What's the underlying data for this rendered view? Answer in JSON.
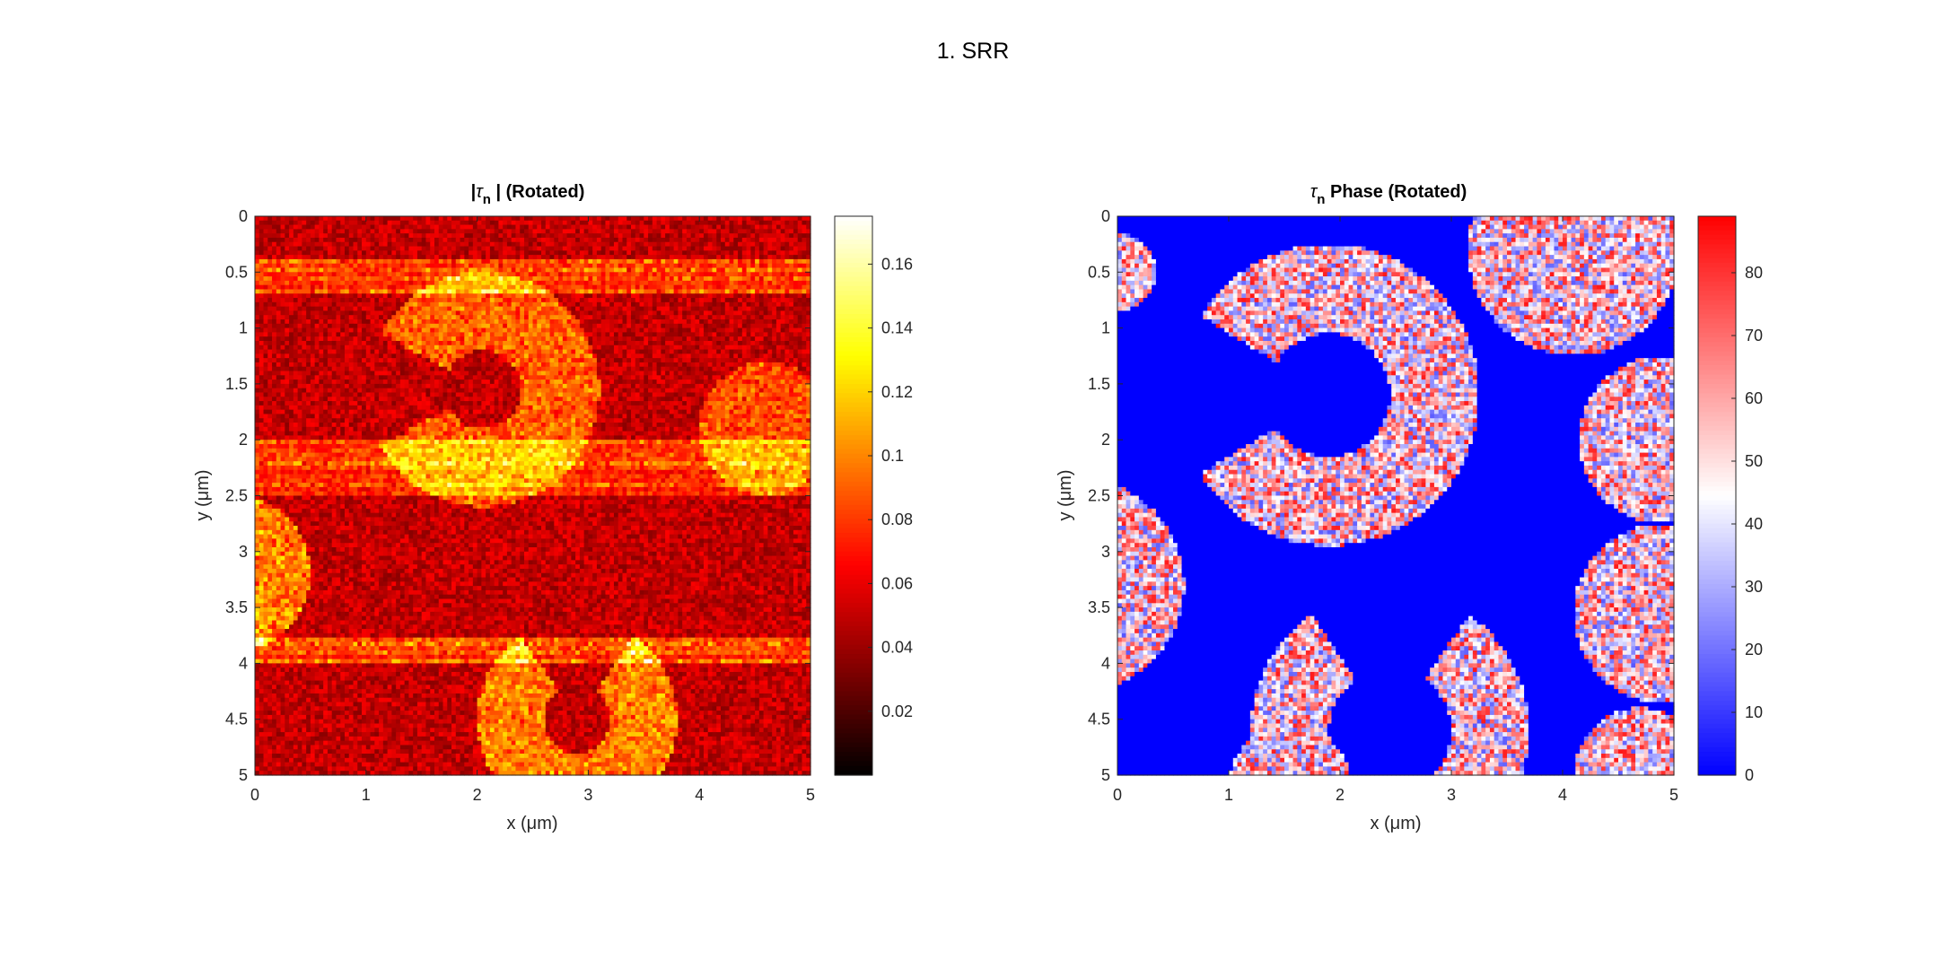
{
  "figure": {
    "title": "1. SRR"
  },
  "chart_data": [
    {
      "type": "heatmap",
      "title": "|τn | (Rotated)",
      "title_parts": {
        "pre": "|",
        "symbol": "τ",
        "sub": "n",
        "post": " | (Rotated)"
      },
      "xlabel": "x (μm)",
      "ylabel": "y (μm)",
      "xlim": [
        0,
        5
      ],
      "ylim": [
        0,
        5
      ],
      "x_ticks": [
        "0",
        "1",
        "2",
        "3",
        "4",
        "5"
      ],
      "y_ticks": [
        "0",
        "0.5",
        "1",
        "1.5",
        "2",
        "2.5",
        "3",
        "3.5",
        "4",
        "4.5",
        "5"
      ],
      "y_direction": "reversed",
      "colormap": "hot",
      "colorbar": {
        "min": 0,
        "max": 0.175,
        "ticks": [
          "0.02",
          "0.04",
          "0.06",
          "0.08",
          "0.1",
          "0.12",
          "0.14",
          "0.16"
        ]
      },
      "grid": false
    },
    {
      "type": "heatmap",
      "title": "τn Phase (Rotated)",
      "title_parts": {
        "pre": "",
        "symbol": "τ",
        "sub": "n",
        "post": " Phase (Rotated)"
      },
      "xlabel": "x (μm)",
      "ylabel": "y (μm)",
      "xlim": [
        0,
        5
      ],
      "ylim": [
        0,
        5
      ],
      "x_ticks": [
        "0",
        "1",
        "2",
        "3",
        "4",
        "5"
      ],
      "y_ticks": [
        "0",
        "0.5",
        "1",
        "1.5",
        "2",
        "2.5",
        "3",
        "3.5",
        "4",
        "4.5",
        "5"
      ],
      "y_direction": "reversed",
      "colormap": "blue-white-red",
      "colorbar": {
        "min": 0,
        "max": 89,
        "ticks": [
          "0",
          "10",
          "20",
          "30",
          "40",
          "50",
          "60",
          "70",
          "80"
        ]
      },
      "background_value": 0,
      "grid": false
    }
  ]
}
